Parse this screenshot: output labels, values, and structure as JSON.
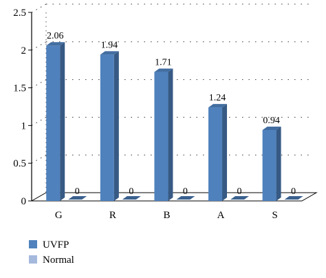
{
  "chart_data": {
    "type": "bar",
    "categories": [
      "G",
      "R",
      "B",
      "A",
      "S"
    ],
    "series": [
      {
        "name": "UVFP",
        "values": [
          2.06,
          1.94,
          1.71,
          1.24,
          0.94
        ],
        "color": "#4f81bd",
        "data_labels": [
          "2.06",
          "1.94",
          "1.71",
          "1.24",
          "0.94"
        ]
      },
      {
        "name": "Normal",
        "values": [
          0,
          0,
          0,
          0,
          0
        ],
        "color": "#a5b9dc",
        "data_labels": [
          "0",
          "0",
          "0",
          "0",
          "0"
        ]
      }
    ],
    "title": "",
    "xlabel": "",
    "ylabel": "",
    "ylim": [
      0,
      2.5
    ],
    "yticks": [
      0,
      0.5,
      1,
      1.5,
      2,
      2.5
    ],
    "ytick_labels": [
      "0",
      "0.5",
      "1",
      "1.5",
      "2",
      "2.5"
    ],
    "grid": "dotted horizontal",
    "legend": "bottom-left",
    "style": "3d"
  }
}
